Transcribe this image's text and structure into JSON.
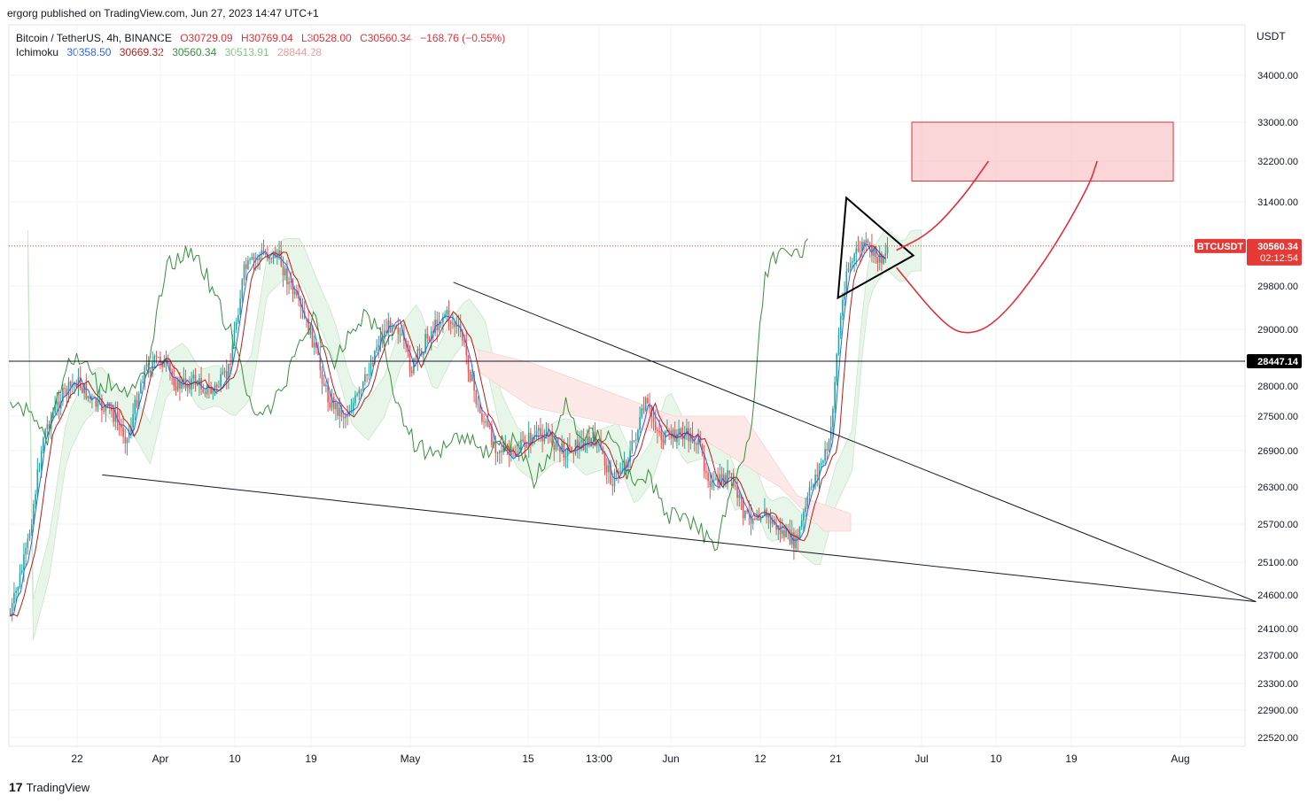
{
  "header": {
    "published": "ergorg published on TradingView.com, Jun 27, 2023 14:47 UTC+1"
  },
  "legend": {
    "symbol": "Bitcoin / TetherUS, 4h, BINANCE",
    "open": "O30729.09",
    "high": "H30769.04",
    "low": "L30528.00",
    "close": "C30560.34",
    "change": "−168.76 (−0.55%)",
    "indicator": "Ichimoku",
    "ichimoku_values": [
      "30358.50",
      "30669.32",
      "30560.34",
      "30513.91",
      "28844.28"
    ]
  },
  "currency": "USDT",
  "footer": {
    "brand": "TradingView"
  },
  "colors": {
    "up": "#26a69a",
    "down": "#ef5350",
    "tenkan": "#2962ff",
    "kijun": "#b71c1c",
    "lagging": "#388e3c",
    "cloud_bull": "#e8f5e9",
    "cloud_bear": "#fde8e8",
    "price_line": "#e53935",
    "target_zone": "#f8c8cc",
    "drawing_red": "#e0303a"
  },
  "chart_data": {
    "type": "candlestick",
    "symbol": "BTCUSDT",
    "timeframe": "4h",
    "exchange": "BINANCE",
    "y_axis": {
      "ticks": [
        "34000.00",
        "33000.00",
        "32200.00",
        "31400.00",
        "30560.34",
        "29800.00",
        "29000.00",
        "28447.14",
        "28000.00",
        "27500.00",
        "26900.00",
        "26300.00",
        "25700.00",
        "25100.00",
        "24600.00",
        "24100.00",
        "23700.00",
        "23300.00",
        "22900.00",
        "22520.00"
      ],
      "tick_values": [
        34000,
        33000,
        32200,
        31400,
        29800,
        29000,
        28000,
        27500,
        26900,
        26300,
        25700,
        25100,
        24600,
        24100,
        23700,
        23300,
        22900,
        22520
      ]
    },
    "x_axis": {
      "ticks": [
        "22",
        "Apr",
        "10",
        "19",
        "May",
        "15",
        "13:00",
        "Jun",
        "12",
        "21",
        "Jul",
        "10",
        "19",
        "Aug"
      ]
    },
    "price_label": {
      "symbol": "BTCUSDT",
      "price": "30560.34",
      "countdown": "02:12:54"
    },
    "horizontal_level": {
      "value": 28447.14,
      "label": "28447.14"
    },
    "trendlines": [
      {
        "from_date": "2023-05-06",
        "from_price": 29870,
        "to_date": "2023-08-10",
        "to_price": 24500
      },
      {
        "from_date": "2023-03-25",
        "from_price": 26500,
        "to_date": "2023-08-10",
        "to_price": 24500
      }
    ],
    "triangle": [
      {
        "date": "2023-06-22",
        "price": 31480
      },
      {
        "date": "2023-06-30",
        "price": 30380
      },
      {
        "date": "2023-06-21",
        "price": 29580
      }
    ],
    "target_zone": {
      "from_date": "2023-07-01",
      "to_date": "2023-07-31",
      "price_top": 33000,
      "price_bottom": 32000
    },
    "projections": [
      [
        [
          "2023-06-28",
          30480
        ],
        [
          "2023-07-02",
          30800
        ],
        [
          "2023-07-06",
          31500
        ],
        [
          "2023-07-09",
          32200
        ]
      ],
      [
        [
          "2023-06-28",
          30150
        ],
        [
          "2023-07-03",
          29200
        ],
        [
          "2023-07-06",
          28880
        ],
        [
          "2023-07-10",
          29100
        ],
        [
          "2023-07-16",
          30300
        ],
        [
          "2023-07-21",
          31700
        ],
        [
          "2023-07-22",
          32200
        ]
      ]
    ],
    "close_series": [
      [
        "2023-03-14",
        24300
      ],
      [
        "2023-03-16",
        25300
      ],
      [
        "2023-03-18",
        27200
      ],
      [
        "2023-03-20",
        27800
      ],
      [
        "2023-03-22",
        28100
      ],
      [
        "2023-03-24",
        27700
      ],
      [
        "2023-03-26",
        27600
      ],
      [
        "2023-03-28",
        27100
      ],
      [
        "2023-03-30",
        28300
      ],
      [
        "2023-04-01",
        28500
      ],
      [
        "2023-04-03",
        28000
      ],
      [
        "2023-04-05",
        28100
      ],
      [
        "2023-04-07",
        27900
      ],
      [
        "2023-04-09",
        28200
      ],
      [
        "2023-04-11",
        30100
      ],
      [
        "2023-04-13",
        30400
      ],
      [
        "2023-04-15",
        30400
      ],
      [
        "2023-04-17",
        29600
      ],
      [
        "2023-04-19",
        28900
      ],
      [
        "2023-04-21",
        27800
      ],
      [
        "2023-04-23",
        27500
      ],
      [
        "2023-04-25",
        27900
      ],
      [
        "2023-04-27",
        28800
      ],
      [
        "2023-04-29",
        29200
      ],
      [
        "2023-05-01",
        28300
      ],
      [
        "2023-05-03",
        28900
      ],
      [
        "2023-05-05",
        29300
      ],
      [
        "2023-05-07",
        28900
      ],
      [
        "2023-05-09",
        27600
      ],
      [
        "2023-05-11",
        27000
      ],
      [
        "2023-05-13",
        26800
      ],
      [
        "2023-05-15",
        27100
      ],
      [
        "2023-05-17",
        27200
      ],
      [
        "2023-05-19",
        26900
      ],
      [
        "2023-05-21",
        27000
      ],
      [
        "2023-05-23",
        27100
      ],
      [
        "2023-05-25",
        26400
      ],
      [
        "2023-05-27",
        26800
      ],
      [
        "2023-05-29",
        27700
      ],
      [
        "2023-05-31",
        27100
      ],
      [
        "2023-06-02",
        27200
      ],
      [
        "2023-06-04",
        27100
      ],
      [
        "2023-06-06",
        26300
      ],
      [
        "2023-06-08",
        26500
      ],
      [
        "2023-06-10",
        25800
      ],
      [
        "2023-06-12",
        25900
      ],
      [
        "2023-06-14",
        25600
      ],
      [
        "2023-06-16",
        25400
      ],
      [
        "2023-06-18",
        26400
      ],
      [
        "2023-06-20",
        27000
      ],
      [
        "2023-06-21",
        28800
      ],
      [
        "2023-06-22",
        30100
      ],
      [
        "2023-06-24",
        30600
      ],
      [
        "2023-06-26",
        30300
      ],
      [
        "2023-06-27",
        30560
      ]
    ]
  }
}
